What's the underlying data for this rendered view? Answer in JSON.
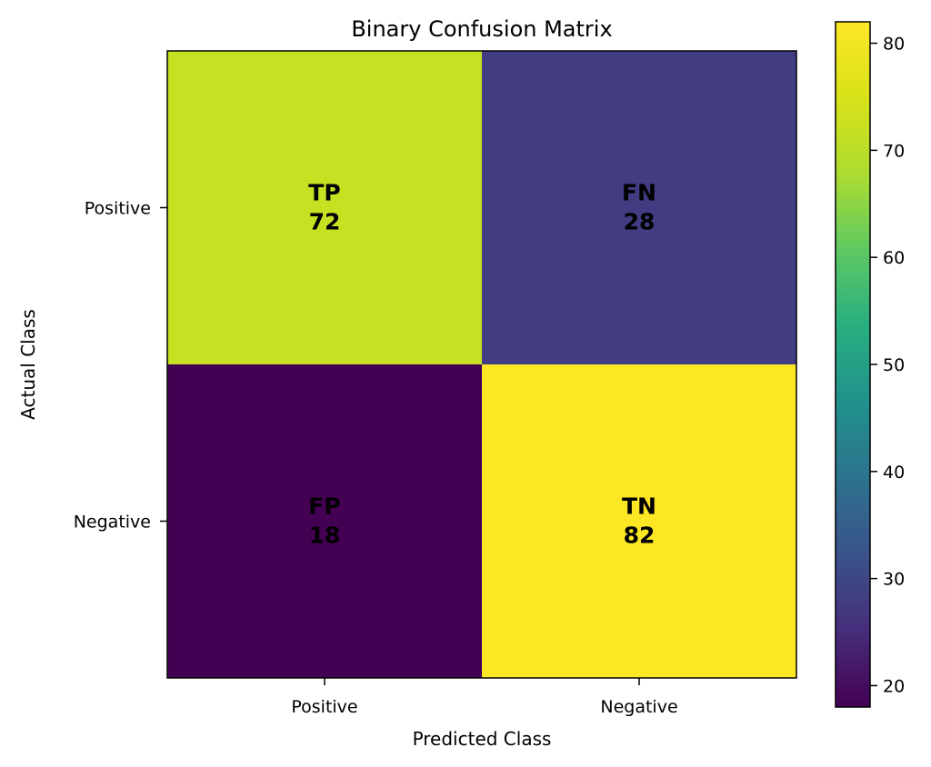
{
  "chart_data": {
    "type": "heatmap",
    "title": "Binary Confusion Matrix",
    "xlabel": "Predicted Class",
    "ylabel": "Actual Class",
    "x_categories": [
      "Positive",
      "Negative"
    ],
    "y_categories": [
      "Positive",
      "Negative"
    ],
    "cells": [
      [
        {
          "label": "TP",
          "value": 72
        },
        {
          "label": "FN",
          "value": 28
        }
      ],
      [
        {
          "label": "FP",
          "value": 18
        },
        {
          "label": "TN",
          "value": 82
        }
      ]
    ],
    "colormap": "viridis",
    "colorbar": {
      "range": [
        18,
        82
      ],
      "ticks": [
        20,
        30,
        40,
        50,
        60,
        70,
        80
      ]
    },
    "grid": false,
    "legend": "colorbar-right"
  }
}
